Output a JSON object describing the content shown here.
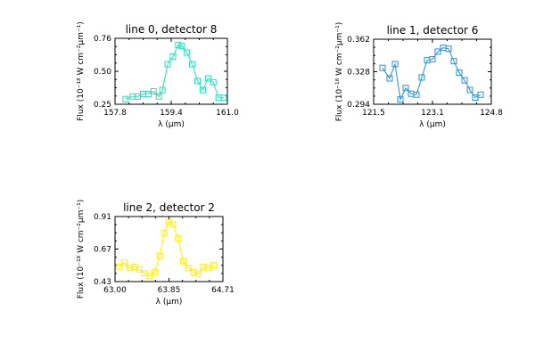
{
  "chart_data": [
    {
      "type": "line",
      "title": "line 0, detector 8",
      "xlabel": "λ (μm)",
      "ylabel": "Flux (10⁻¹⁸ W cm⁻²μm⁻¹)",
      "xlim": [
        157.8,
        161.0
      ],
      "ylim": [
        0.25,
        0.76
      ],
      "xticks": [
        "157.8",
        "159.4",
        "161.0"
      ],
      "yticks": [
        "0.25",
        "0.50",
        "0.76"
      ],
      "color": "#22e0b8",
      "series": [
        {
          "x": [
            158.1,
            158.3,
            158.45,
            158.6,
            158.75,
            158.9,
            159.05,
            159.15,
            159.3,
            159.45,
            159.6,
            159.7,
            159.85,
            160.0,
            160.15,
            160.3,
            160.45,
            160.6,
            160.75,
            160.9
          ],
          "y": [
            0.29,
            0.31,
            0.31,
            0.33,
            0.33,
            0.35,
            0.31,
            0.36,
            0.56,
            0.62,
            0.71,
            0.7,
            0.65,
            0.56,
            0.43,
            0.36,
            0.45,
            0.42,
            0.3,
            0.3
          ]
        }
      ]
    },
    {
      "type": "line",
      "title": "line 1, detector 6",
      "xlabel": "λ (μm)",
      "ylabel": "Flux (10⁻¹⁸ W cm⁻²μm⁻¹)",
      "xlim": [
        121.5,
        124.8
      ],
      "ylim": [
        0.294,
        0.362
      ],
      "xticks": [
        "121.5",
        "123.1",
        "124.8"
      ],
      "yticks": [
        "0.294",
        "0.328",
        "0.362"
      ],
      "color": "#2a8fdc",
      "series": [
        {
          "x": [
            121.75,
            121.95,
            122.1,
            122.25,
            122.4,
            122.55,
            122.7,
            122.85,
            123.0,
            123.15,
            123.3,
            123.45,
            123.6,
            123.75,
            123.9,
            124.05,
            124.2,
            124.35,
            124.5
          ],
          "y": [
            0.332,
            0.321,
            0.336,
            0.299,
            0.311,
            0.305,
            0.304,
            0.322,
            0.34,
            0.341,
            0.349,
            0.353,
            0.352,
            0.339,
            0.327,
            0.319,
            0.309,
            0.301,
            0.304
          ]
        }
      ]
    },
    {
      "type": "line",
      "title": "line 2, detector 2",
      "xlabel": "λ (μm)",
      "ylabel": "Flux (10⁻¹⁸ W cm⁻²μm⁻¹)",
      "xlim": [
        63.0,
        64.71
      ],
      "ylim": [
        0.43,
        0.91
      ],
      "xticks": [
        "63.00",
        "63.85",
        "64.71"
      ],
      "yticks": [
        "0.43",
        "0.67",
        "0.91"
      ],
      "color": "#ffee00",
      "series": [
        {
          "x": [
            63.07,
            63.15,
            63.23,
            63.31,
            63.39,
            63.47,
            63.55,
            63.63,
            63.71,
            63.78,
            63.85,
            63.92,
            64.0,
            64.08,
            64.16,
            64.24,
            64.32,
            64.4,
            64.48,
            64.56
          ],
          "y": [
            0.54,
            0.57,
            0.53,
            0.54,
            0.52,
            0.49,
            0.47,
            0.5,
            0.62,
            0.79,
            0.87,
            0.85,
            0.75,
            0.58,
            0.53,
            0.5,
            0.49,
            0.54,
            0.53,
            0.55
          ]
        }
      ]
    }
  ]
}
